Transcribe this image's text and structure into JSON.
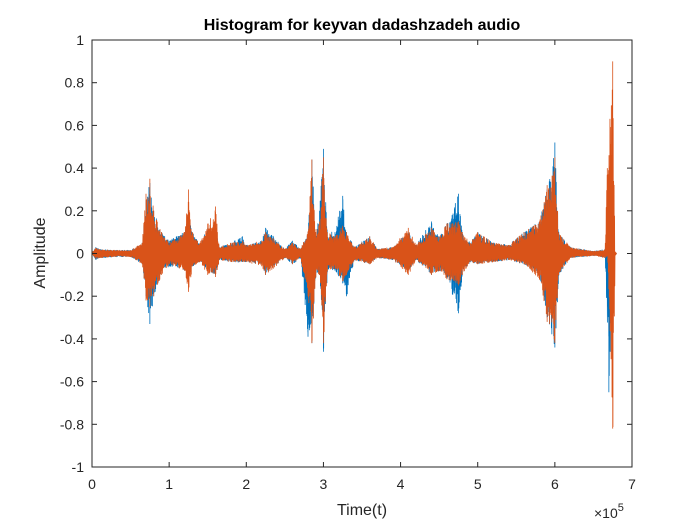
{
  "chart_data": {
    "type": "line",
    "title": "Histogram for keyvan dadashzadeh audio",
    "xlabel": "Time(t)",
    "ylabel": "Amplitude",
    "x_exponent_label": "×10",
    "x_exponent_power": "5",
    "xlim": [
      0,
      7
    ],
    "ylim": [
      -1,
      1
    ],
    "x_ticks": [
      "0",
      "1",
      "2",
      "3",
      "4",
      "5",
      "6",
      "7"
    ],
    "y_ticks": [
      "-1",
      "-0.8",
      "-0.6",
      "-0.4",
      "-0.2",
      "0",
      "0.2",
      "0.4",
      "0.6",
      "0.8",
      "1"
    ],
    "grid": false,
    "series": [
      {
        "color": "#0072BD",
        "envelope": [
          [
            0.0,
            0.005,
            -0.005
          ],
          [
            0.05,
            0.03,
            -0.03
          ],
          [
            0.1,
            0.02,
            -0.02
          ],
          [
            0.3,
            0.015,
            -0.015
          ],
          [
            0.5,
            0.015,
            -0.015
          ],
          [
            0.65,
            0.05,
            -0.05
          ],
          [
            0.7,
            0.25,
            -0.2
          ],
          [
            0.75,
            0.33,
            -0.33
          ],
          [
            0.8,
            0.2,
            -0.2
          ],
          [
            0.9,
            0.1,
            -0.08
          ],
          [
            1.0,
            0.06,
            -0.06
          ],
          [
            1.2,
            0.1,
            -0.08
          ],
          [
            1.25,
            0.18,
            -0.12
          ],
          [
            1.3,
            0.1,
            -0.06
          ],
          [
            1.4,
            0.05,
            -0.04
          ],
          [
            1.5,
            0.12,
            -0.08
          ],
          [
            1.6,
            0.12,
            -0.1
          ],
          [
            1.65,
            0.03,
            -0.03
          ],
          [
            1.8,
            0.05,
            -0.04
          ],
          [
            1.95,
            0.08,
            -0.04
          ],
          [
            2.0,
            0.04,
            -0.04
          ],
          [
            2.2,
            0.06,
            -0.05
          ],
          [
            2.25,
            0.12,
            -0.1
          ],
          [
            2.35,
            0.08,
            -0.06
          ],
          [
            2.5,
            0.02,
            -0.02
          ],
          [
            2.6,
            0.06,
            -0.05
          ],
          [
            2.7,
            0.02,
            -0.02
          ],
          [
            2.8,
            0.1,
            -0.39
          ],
          [
            2.85,
            0.44,
            -0.42
          ],
          [
            2.9,
            0.1,
            -0.1
          ],
          [
            2.95,
            0.2,
            -0.1
          ],
          [
            3.0,
            0.49,
            -0.46
          ],
          [
            3.05,
            0.1,
            -0.08
          ],
          [
            3.15,
            0.1,
            -0.08
          ],
          [
            3.25,
            0.27,
            -0.14
          ],
          [
            3.3,
            0.1,
            -0.2
          ],
          [
            3.4,
            0.03,
            -0.03
          ],
          [
            3.6,
            0.08,
            -0.05
          ],
          [
            3.7,
            0.02,
            -0.02
          ],
          [
            3.9,
            0.03,
            -0.03
          ],
          [
            4.1,
            0.1,
            -0.08
          ],
          [
            4.2,
            0.04,
            -0.03
          ],
          [
            4.4,
            0.15,
            -0.1
          ],
          [
            4.5,
            0.08,
            -0.08
          ],
          [
            4.6,
            0.14,
            -0.12
          ],
          [
            4.75,
            0.28,
            -0.28
          ],
          [
            4.8,
            0.1,
            -0.1
          ],
          [
            4.9,
            0.05,
            -0.04
          ],
          [
            5.0,
            0.1,
            -0.05
          ],
          [
            5.2,
            0.05,
            -0.04
          ],
          [
            5.4,
            0.04,
            -0.03
          ],
          [
            5.6,
            0.1,
            -0.05
          ],
          [
            5.8,
            0.15,
            -0.1
          ],
          [
            5.9,
            0.3,
            -0.3
          ],
          [
            6.0,
            0.52,
            -0.44
          ],
          [
            6.05,
            0.1,
            -0.1
          ],
          [
            6.2,
            0.03,
            -0.02
          ],
          [
            6.5,
            0.01,
            -0.01
          ],
          [
            6.65,
            0.02,
            -0.02
          ],
          [
            6.7,
            0.01,
            -0.65
          ],
          [
            6.75,
            0.01,
            -0.01
          ],
          [
            6.8,
            0.0,
            0.0
          ]
        ]
      },
      {
        "color": "#D95319",
        "envelope": [
          [
            0.0,
            0.005,
            -0.005
          ],
          [
            0.05,
            0.025,
            -0.025
          ],
          [
            0.1,
            0.02,
            -0.02
          ],
          [
            0.3,
            0.015,
            -0.015
          ],
          [
            0.5,
            0.015,
            -0.015
          ],
          [
            0.65,
            0.05,
            -0.05
          ],
          [
            0.7,
            0.28,
            -0.22
          ],
          [
            0.75,
            0.35,
            -0.25
          ],
          [
            0.8,
            0.2,
            -0.2
          ],
          [
            0.9,
            0.1,
            -0.1
          ],
          [
            1.0,
            0.05,
            -0.05
          ],
          [
            1.2,
            0.1,
            -0.08
          ],
          [
            1.25,
            0.3,
            -0.18
          ],
          [
            1.3,
            0.1,
            -0.06
          ],
          [
            1.4,
            0.05,
            -0.04
          ],
          [
            1.5,
            0.14,
            -0.1
          ],
          [
            1.6,
            0.22,
            -0.11
          ],
          [
            1.65,
            0.03,
            -0.03
          ],
          [
            1.8,
            0.05,
            -0.04
          ],
          [
            1.95,
            0.06,
            -0.04
          ],
          [
            2.0,
            0.04,
            -0.04
          ],
          [
            2.2,
            0.06,
            -0.06
          ],
          [
            2.25,
            0.1,
            -0.1
          ],
          [
            2.35,
            0.07,
            -0.07
          ],
          [
            2.5,
            0.02,
            -0.02
          ],
          [
            2.6,
            0.05,
            -0.05
          ],
          [
            2.7,
            0.02,
            -0.02
          ],
          [
            2.8,
            0.1,
            -0.2
          ],
          [
            2.85,
            0.44,
            -0.42
          ],
          [
            2.9,
            0.1,
            -0.1
          ],
          [
            2.95,
            0.15,
            -0.1
          ],
          [
            3.0,
            0.45,
            -0.42
          ],
          [
            3.05,
            0.1,
            -0.08
          ],
          [
            3.15,
            0.08,
            -0.07
          ],
          [
            3.25,
            0.13,
            -0.13
          ],
          [
            3.3,
            0.1,
            -0.1
          ],
          [
            3.4,
            0.03,
            -0.03
          ],
          [
            3.6,
            0.08,
            -0.05
          ],
          [
            3.7,
            0.02,
            -0.02
          ],
          [
            3.9,
            0.03,
            -0.03
          ],
          [
            4.1,
            0.12,
            -0.1
          ],
          [
            4.2,
            0.04,
            -0.03
          ],
          [
            4.4,
            0.12,
            -0.1
          ],
          [
            4.5,
            0.08,
            -0.08
          ],
          [
            4.6,
            0.14,
            -0.12
          ],
          [
            4.75,
            0.15,
            -0.15
          ],
          [
            4.8,
            0.1,
            -0.1
          ],
          [
            4.9,
            0.05,
            -0.04
          ],
          [
            5.0,
            0.1,
            -0.05
          ],
          [
            5.2,
            0.05,
            -0.04
          ],
          [
            5.4,
            0.04,
            -0.03
          ],
          [
            5.6,
            0.1,
            -0.05
          ],
          [
            5.8,
            0.15,
            -0.12
          ],
          [
            5.9,
            0.32,
            -0.32
          ],
          [
            6.0,
            0.45,
            -0.42
          ],
          [
            6.05,
            0.1,
            -0.1
          ],
          [
            6.2,
            0.03,
            -0.02
          ],
          [
            6.5,
            0.01,
            -0.01
          ],
          [
            6.65,
            0.02,
            -0.02
          ],
          [
            6.68,
            0.4,
            -0.01
          ],
          [
            6.75,
            0.9,
            -0.82
          ],
          [
            6.78,
            0.01,
            -0.01
          ],
          [
            6.8,
            0.0,
            0.0
          ]
        ]
      }
    ]
  }
}
